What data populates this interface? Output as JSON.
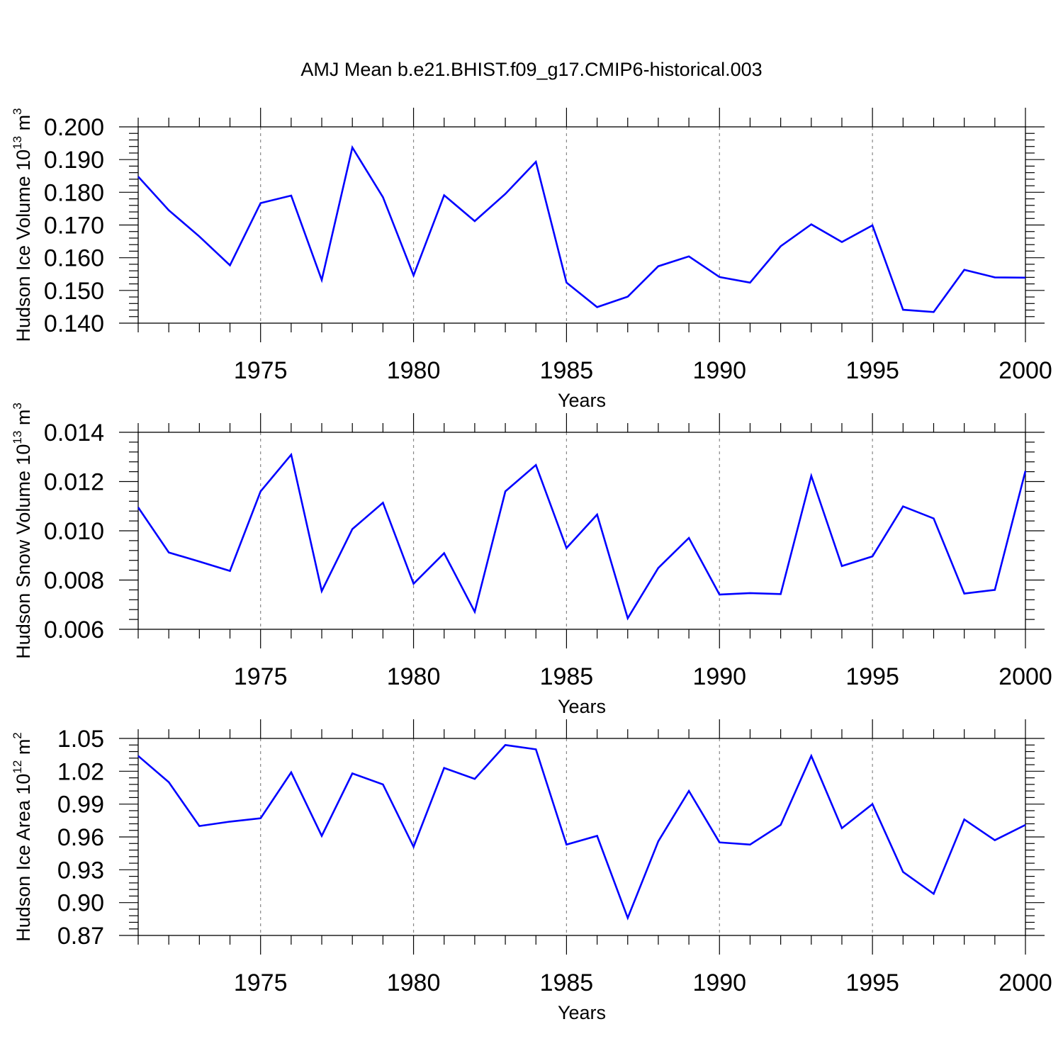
{
  "title": "AMJ Mean b.e21.BHIST.f09_g17.CMIP6-historical.003",
  "chart_data": [
    {
      "type": "line",
      "title": "AMJ Mean b.e21.BHIST.f09_g17.CMIP6-historical.003",
      "xlabel": "Years",
      "ylabel": {
        "text": "Hudson Ice Volume 10",
        "sup1": "13",
        "mid": " m",
        "sup2": "3"
      },
      "xlim": [
        1971,
        2000
      ],
      "ylim": [
        0.14,
        0.2
      ],
      "xticks": [
        "1975",
        "1980",
        "1985",
        "1990",
        "1995",
        "2000"
      ],
      "yticks": [
        "0.140",
        "0.150",
        "0.160",
        "0.170",
        "0.180",
        "0.190",
        "0.200"
      ],
      "grid": "vertical dashed at major x ticks",
      "line_color": "#0000ff",
      "x": [
        1971,
        1972,
        1973,
        1974,
        1975,
        1976,
        1977,
        1978,
        1979,
        1980,
        1981,
        1982,
        1983,
        1984,
        1985,
        1986,
        1987,
        1988,
        1989,
        1990,
        1991,
        1992,
        1993,
        1994,
        1995,
        1996,
        1997,
        1998,
        1999,
        2000
      ],
      "values": [
        0.1848,
        0.1745,
        0.1665,
        0.1577,
        0.1767,
        0.179,
        0.1532,
        0.1937,
        0.1785,
        0.1546,
        0.1791,
        0.1712,
        0.1795,
        0.1893,
        0.1524,
        0.1449,
        0.1481,
        0.1574,
        0.1604,
        0.1541,
        0.1524,
        0.1635,
        0.1702,
        0.1648,
        0.1699,
        0.1441,
        0.1434,
        0.1563,
        0.154,
        0.1539
      ]
    },
    {
      "type": "line",
      "xlabel": "Years",
      "ylabel": {
        "text": "Hudson Snow Volume 10",
        "sup1": "13",
        "mid": " m",
        "sup2": "3"
      },
      "xlim": [
        1971,
        2000
      ],
      "ylim": [
        0.006,
        0.014
      ],
      "xticks": [
        "1975",
        "1980",
        "1985",
        "1990",
        "1995",
        "2000"
      ],
      "yticks": [
        "0.006",
        "0.008",
        "0.010",
        "0.012",
        "0.014"
      ],
      "grid": "vertical dashed at major x ticks",
      "line_color": "#0000ff",
      "x": [
        1971,
        1972,
        1973,
        1974,
        1975,
        1976,
        1977,
        1978,
        1979,
        1980,
        1981,
        1982,
        1983,
        1984,
        1985,
        1986,
        1987,
        1988,
        1989,
        1990,
        1991,
        1992,
        1993,
        1994,
        1995,
        1996,
        1997,
        1998,
        1999,
        2000
      ],
      "values": [
        0.01095,
        0.00912,
        0.00875,
        0.00837,
        0.0116,
        0.01309,
        0.00755,
        0.01007,
        0.01114,
        0.00785,
        0.00909,
        0.00671,
        0.0116,
        0.01267,
        0.0093,
        0.01066,
        0.00645,
        0.00849,
        0.00971,
        0.00741,
        0.00747,
        0.00743,
        0.01223,
        0.00857,
        0.00896,
        0.01099,
        0.0105,
        0.00745,
        0.0076,
        0.01243
      ]
    },
    {
      "type": "line",
      "xlabel": "Years",
      "ylabel": {
        "text": "Hudson Ice Area 10",
        "sup1": "12",
        "mid": " m",
        "sup2": "2"
      },
      "xlim": [
        1971,
        2000
      ],
      "ylim": [
        0.87,
        1.05
      ],
      "xticks": [
        "1975",
        "1980",
        "1985",
        "1990",
        "1995",
        "2000"
      ],
      "yticks": [
        "0.87",
        "0.90",
        "0.93",
        "0.96",
        "0.99",
        "1.02",
        "1.05"
      ],
      "grid": "vertical dashed at major x ticks",
      "line_color": "#0000ff",
      "x": [
        1971,
        1972,
        1973,
        1974,
        1975,
        1976,
        1977,
        1978,
        1979,
        1980,
        1981,
        1982,
        1983,
        1984,
        1985,
        1986,
        1987,
        1988,
        1989,
        1990,
        1991,
        1992,
        1993,
        1994,
        1995,
        1996,
        1997,
        1998,
        1999,
        2000
      ],
      "values": [
        1.034,
        1.01,
        0.97,
        0.974,
        0.977,
        1.019,
        0.961,
        1.018,
        1.008,
        0.951,
        1.023,
        1.013,
        1.044,
        1.04,
        0.953,
        0.961,
        0.886,
        0.956,
        1.002,
        0.955,
        0.953,
        0.971,
        1.034,
        0.968,
        0.99,
        0.928,
        0.908,
        0.976,
        0.957,
        0.971
      ]
    }
  ]
}
